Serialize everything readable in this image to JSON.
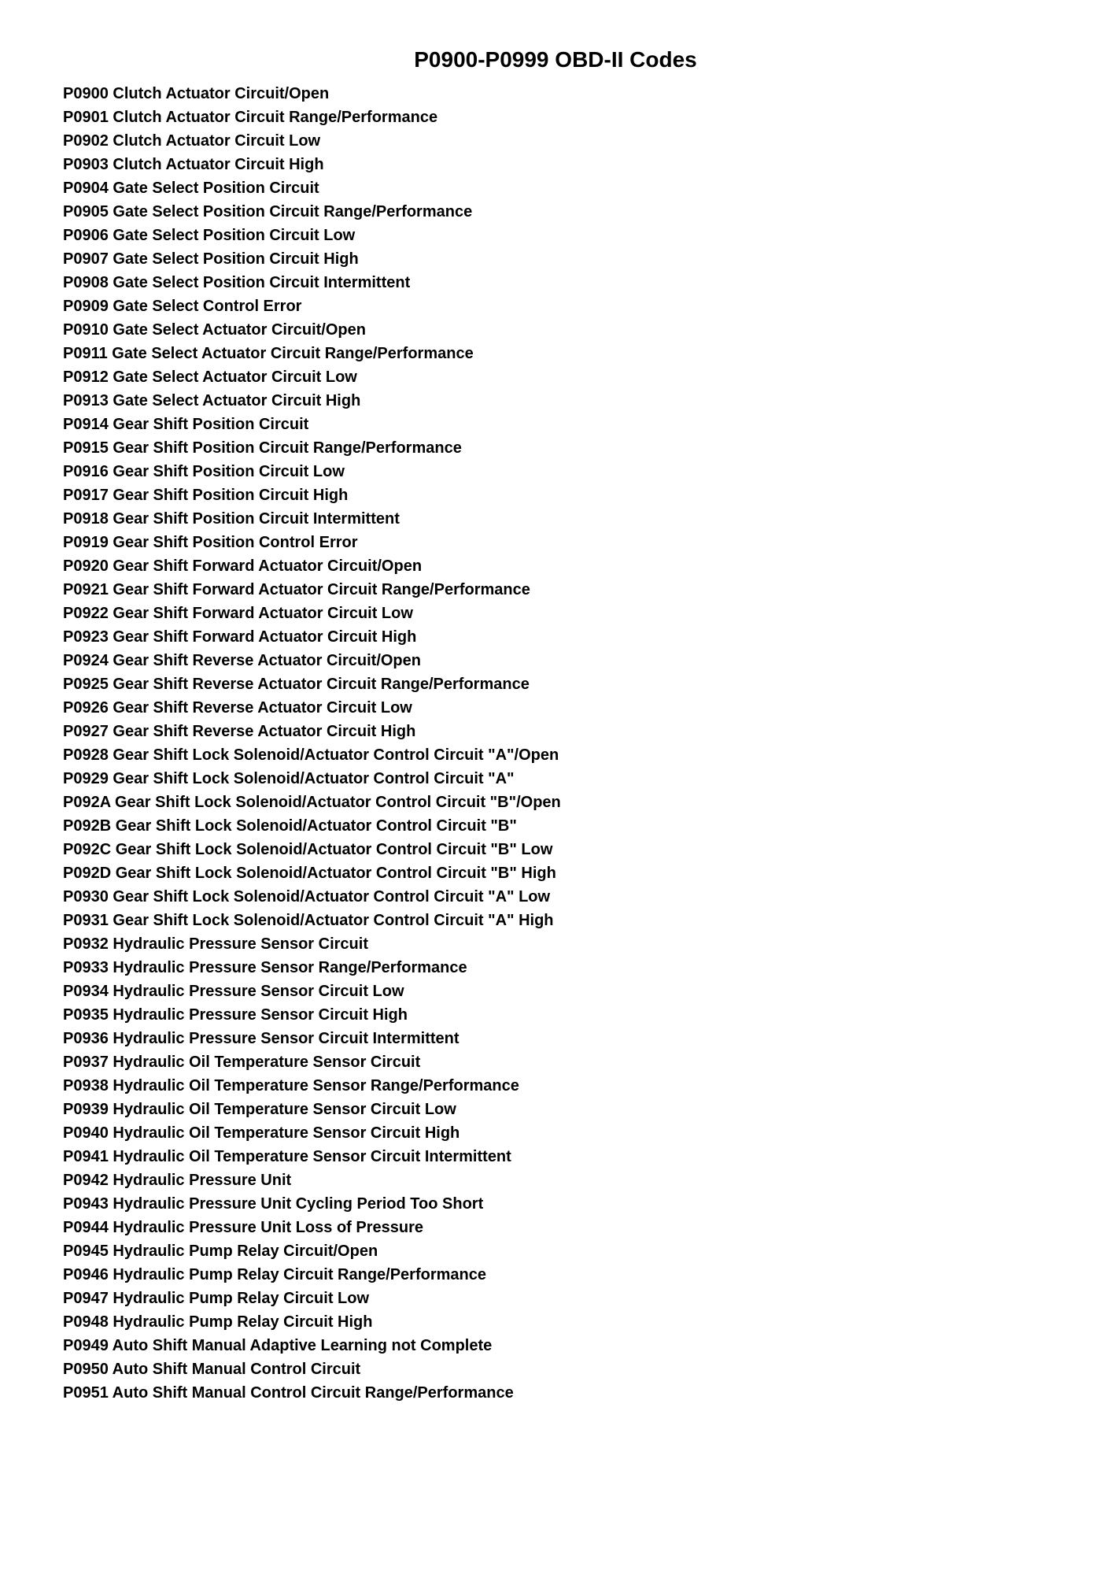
{
  "title": "P0900-P0999 OBD-II Codes",
  "codes": [
    {
      "code": "P0900",
      "description": "Clutch Actuator Circuit/Open"
    },
    {
      "code": "P0901",
      "description": "Clutch Actuator Circuit Range/Performance"
    },
    {
      "code": "P0902",
      "description": "Clutch Actuator Circuit Low"
    },
    {
      "code": "P0903",
      "description": "Clutch Actuator Circuit High"
    },
    {
      "code": "P0904",
      "description": "Gate Select Position Circuit"
    },
    {
      "code": "P0905",
      "description": "Gate Select Position Circuit Range/Performance"
    },
    {
      "code": "P0906",
      "description": "Gate Select Position Circuit Low"
    },
    {
      "code": "P0907",
      "description": "Gate Select Position Circuit High"
    },
    {
      "code": "P0908",
      "description": "Gate Select Position Circuit Intermittent"
    },
    {
      "code": "P0909",
      "description": "Gate Select Control Error"
    },
    {
      "code": "P0910",
      "description": "Gate Select Actuator Circuit/Open"
    },
    {
      "code": "P0911",
      "description": "Gate Select Actuator Circuit Range/Performance"
    },
    {
      "code": "P0912",
      "description": "Gate Select Actuator Circuit Low"
    },
    {
      "code": "P0913",
      "description": "Gate Select Actuator Circuit High"
    },
    {
      "code": "P0914",
      "description": "Gear Shift Position Circuit"
    },
    {
      "code": "P0915",
      "description": "Gear Shift Position Circuit Range/Performance"
    },
    {
      "code": "P0916",
      "description": "Gear Shift Position Circuit Low"
    },
    {
      "code": "P0917",
      "description": "Gear Shift Position Circuit High"
    },
    {
      "code": "P0918",
      "description": "Gear Shift Position Circuit Intermittent"
    },
    {
      "code": "P0919",
      "description": "Gear Shift Position Control Error"
    },
    {
      "code": "P0920",
      "description": "Gear Shift Forward Actuator Circuit/Open"
    },
    {
      "code": "P0921",
      "description": "Gear Shift Forward Actuator Circuit Range/Performance"
    },
    {
      "code": "P0922",
      "description": "Gear Shift Forward Actuator Circuit Low"
    },
    {
      "code": "P0923",
      "description": "Gear Shift Forward Actuator Circuit High"
    },
    {
      "code": "P0924",
      "description": "Gear Shift Reverse Actuator Circuit/Open"
    },
    {
      "code": "P0925",
      "description": "Gear Shift Reverse Actuator Circuit Range/Performance"
    },
    {
      "code": "P0926",
      "description": "Gear Shift Reverse Actuator Circuit Low"
    },
    {
      "code": "P0927",
      "description": "Gear Shift Reverse Actuator Circuit High"
    },
    {
      "code": "P0928",
      "description": "Gear Shift Lock Solenoid/Actuator Control Circuit \"A\"/Open"
    },
    {
      "code": "P0929",
      "description": "Gear Shift Lock Solenoid/Actuator Control Circuit \"A\""
    },
    {
      "code": "P092A",
      "description": "Gear Shift Lock Solenoid/Actuator Control Circuit \"B\"/Open"
    },
    {
      "code": "P092B",
      "description": "Gear Shift Lock Solenoid/Actuator Control Circuit \"B\""
    },
    {
      "code": "P092C",
      "description": "Gear Shift Lock Solenoid/Actuator Control Circuit \"B\" Low"
    },
    {
      "code": "P092D",
      "description": "Gear Shift Lock Solenoid/Actuator Control Circuit \"B\" High"
    },
    {
      "code": "P0930",
      "description": "Gear Shift Lock Solenoid/Actuator Control Circuit \"A\" Low"
    },
    {
      "code": "P0931",
      "description": "Gear Shift Lock Solenoid/Actuator Control Circuit \"A\" High"
    },
    {
      "code": "P0932",
      "description": "Hydraulic Pressure Sensor Circuit"
    },
    {
      "code": "P0933",
      "description": "Hydraulic Pressure Sensor Range/Performance"
    },
    {
      "code": "P0934",
      "description": "Hydraulic Pressure Sensor Circuit Low"
    },
    {
      "code": "P0935",
      "description": "Hydraulic Pressure Sensor Circuit High"
    },
    {
      "code": "P0936",
      "description": "Hydraulic Pressure Sensor Circuit Intermittent"
    },
    {
      "code": "P0937",
      "description": "Hydraulic Oil Temperature Sensor Circuit"
    },
    {
      "code": "P0938",
      "description": "Hydraulic Oil Temperature Sensor Range/Performance"
    },
    {
      "code": "P0939",
      "description": "Hydraulic Oil Temperature Sensor Circuit Low"
    },
    {
      "code": "P0940",
      "description": "Hydraulic Oil Temperature Sensor Circuit High"
    },
    {
      "code": "P0941",
      "description": "Hydraulic Oil Temperature Sensor Circuit Intermittent"
    },
    {
      "code": "P0942",
      "description": "Hydraulic Pressure Unit"
    },
    {
      "code": "P0943",
      "description": "Hydraulic Pressure Unit Cycling Period Too Short"
    },
    {
      "code": "P0944",
      "description": "Hydraulic Pressure Unit Loss of Pressure"
    },
    {
      "code": "P0945",
      "description": "Hydraulic Pump Relay Circuit/Open"
    },
    {
      "code": "P0946",
      "description": "Hydraulic Pump Relay Circuit Range/Performance"
    },
    {
      "code": "P0947",
      "description": "Hydraulic Pump Relay Circuit Low"
    },
    {
      "code": "P0948",
      "description": "Hydraulic Pump Relay Circuit High"
    },
    {
      "code": "P0949",
      "description": "Auto Shift Manual Adaptive Learning not Complete"
    },
    {
      "code": "P0950",
      "description": "Auto Shift Manual Control Circuit"
    },
    {
      "code": "P0951",
      "description": "Auto Shift Manual Control Circuit Range/Performance"
    }
  ],
  "styling": {
    "background_color": "#ffffff",
    "text_color": "#000000",
    "title_fontsize": 28,
    "item_fontsize": 20,
    "font_weight": "bold",
    "font_family": "Arial"
  }
}
